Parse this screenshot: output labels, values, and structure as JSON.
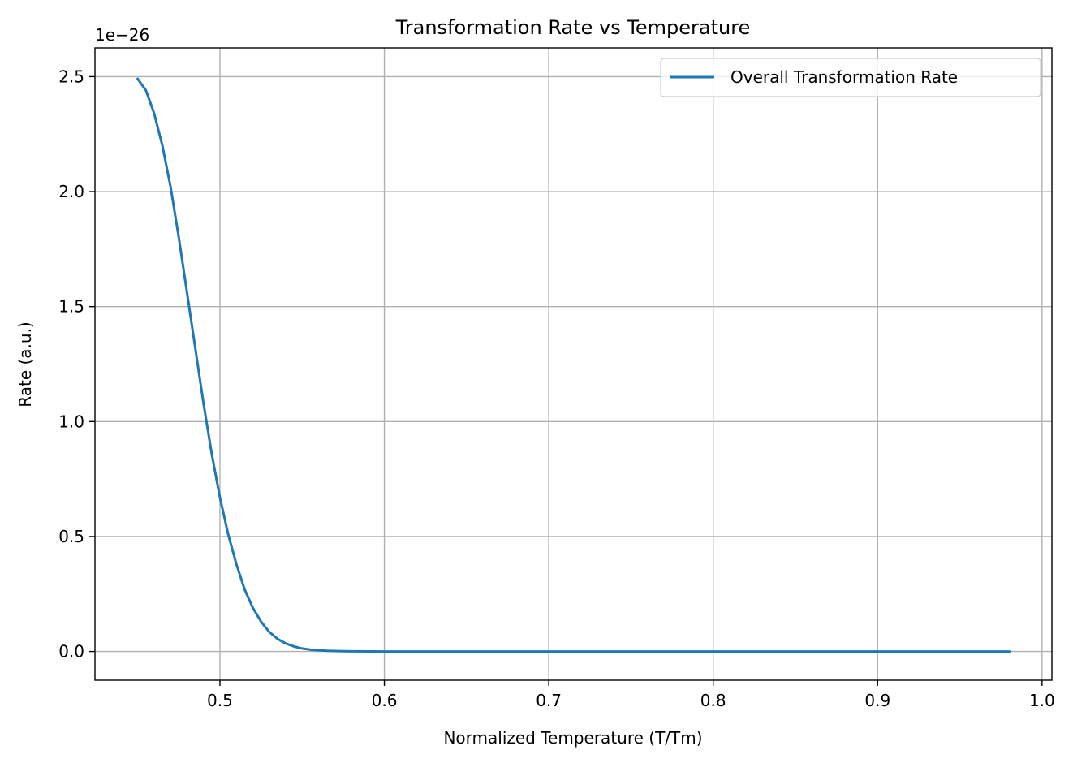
{
  "chart_data": {
    "type": "line",
    "title": "Transformation Rate vs Temperature",
    "xlabel": "Normalized Temperature (T/Tm)",
    "ylabel": "Rate (a.u.)",
    "y_offset_label": "1e−26",
    "xlim": [
      0.424,
      1.006
    ],
    "ylim": [
      -0.125,
      2.625
    ],
    "xticks": [
      {
        "value": 0.5,
        "label": "0.5"
      },
      {
        "value": 0.6,
        "label": "0.6"
      },
      {
        "value": 0.7,
        "label": "0.7"
      },
      {
        "value": 0.8,
        "label": "0.8"
      },
      {
        "value": 0.9,
        "label": "0.9"
      },
      {
        "value": 1.0,
        "label": "1.0"
      }
    ],
    "yticks": [
      {
        "value": 0.0,
        "label": "0.0"
      },
      {
        "value": 0.5,
        "label": "0.5"
      },
      {
        "value": 1.0,
        "label": "1.0"
      },
      {
        "value": 1.5,
        "label": "1.5"
      },
      {
        "value": 2.0,
        "label": "2.0"
      },
      {
        "value": 2.5,
        "label": "2.5"
      }
    ],
    "grid": true,
    "legend_position": "top-right",
    "series": [
      {
        "name": "Overall Transformation Rate",
        "color": "#1f77b4",
        "x": [
          0.45,
          0.455,
          0.46,
          0.465,
          0.47,
          0.475,
          0.48,
          0.485,
          0.49,
          0.495,
          0.5,
          0.505,
          0.51,
          0.515,
          0.52,
          0.525,
          0.53,
          0.535,
          0.54,
          0.545,
          0.55,
          0.555,
          0.56,
          0.565,
          0.57,
          0.575,
          0.58,
          0.59,
          0.6,
          0.65,
          0.7,
          0.75,
          0.8,
          0.85,
          0.9,
          0.95,
          0.98
        ],
        "y": [
          2.49,
          2.44,
          2.34,
          2.2,
          2.02,
          1.8,
          1.56,
          1.32,
          1.08,
          0.86,
          0.67,
          0.51,
          0.38,
          0.27,
          0.19,
          0.13,
          0.085,
          0.055,
          0.035,
          0.022,
          0.013,
          0.008,
          0.005,
          0.003,
          0.002,
          0.001,
          0.0006,
          0.0002,
          0.0,
          0.0,
          0.0,
          0.0,
          0.0,
          0.0,
          0.0,
          0.0,
          0.0
        ]
      }
    ]
  }
}
